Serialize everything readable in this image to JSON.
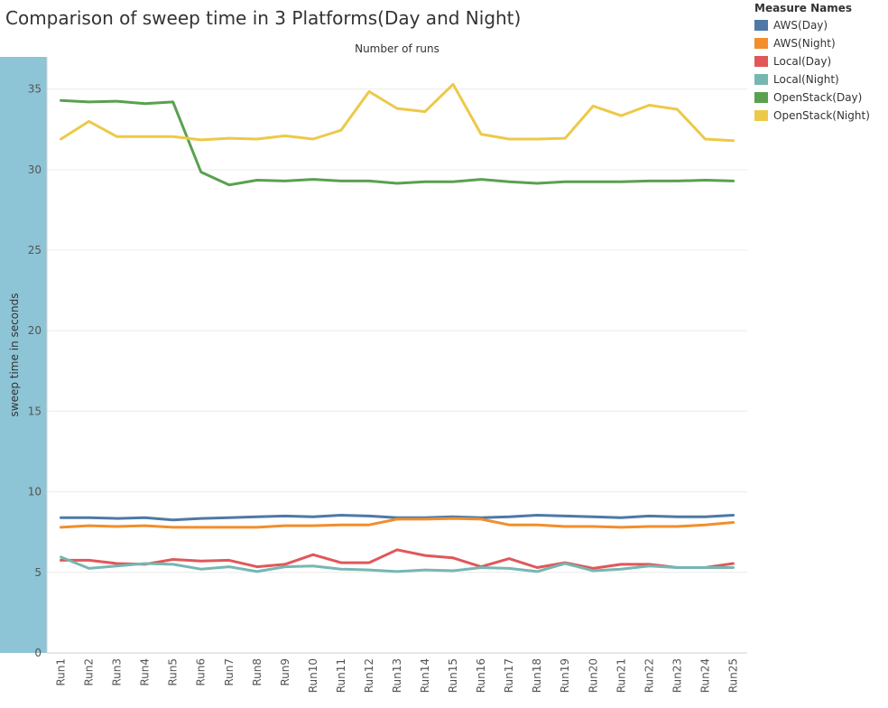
{
  "chart_data": {
    "type": "line",
    "title": "Comparison of sweep time in 3 Platforms(Day and Night)",
    "top_axis_label": "Number of runs",
    "ylabel": "sweep time in seconds",
    "ylim": [
      0,
      37
    ],
    "yticks": [
      0,
      5,
      10,
      15,
      20,
      25,
      30,
      35
    ],
    "categories": [
      "Run1",
      "Run2",
      "Run3",
      "Run4",
      "Run5",
      "Run6",
      "Run7",
      "Run8",
      "Run9",
      "Run10",
      "Run11",
      "Run12",
      "Run13",
      "Run14",
      "Run15",
      "Run16",
      "Run17",
      "Run18",
      "Run19",
      "Run20",
      "Run21",
      "Run22",
      "Run23",
      "Run24",
      "Run25"
    ],
    "legend_title": "Measure Names",
    "legend_position": "top-right",
    "grid": true,
    "series": [
      {
        "name": "AWS(Day)",
        "color": "#4e79a7",
        "values": [
          8.4,
          8.4,
          8.35,
          8.4,
          8.25,
          8.35,
          8.4,
          8.45,
          8.5,
          8.45,
          8.55,
          8.5,
          8.4,
          8.4,
          8.45,
          8.4,
          8.45,
          8.55,
          8.5,
          8.45,
          8.4,
          8.5,
          8.45,
          8.45,
          8.55
        ]
      },
      {
        "name": "AWS(Night)",
        "color": "#f28e2b",
        "values": [
          7.8,
          7.9,
          7.85,
          7.9,
          7.8,
          7.8,
          7.8,
          7.8,
          7.9,
          7.9,
          7.95,
          7.95,
          8.3,
          8.3,
          8.35,
          8.3,
          7.95,
          7.95,
          7.85,
          7.85,
          7.8,
          7.85,
          7.85,
          7.95,
          8.1
        ]
      },
      {
        "name": "Local(Day)",
        "color": "#e15759",
        "values": [
          5.75,
          5.75,
          5.55,
          5.5,
          5.8,
          5.7,
          5.75,
          5.35,
          5.5,
          6.1,
          5.6,
          5.6,
          6.4,
          6.05,
          5.9,
          5.35,
          5.85,
          5.3,
          5.6,
          5.25,
          5.5,
          5.5,
          5.3,
          5.3,
          5.55
        ]
      },
      {
        "name": "Local(Night)",
        "color": "#76b7b2",
        "values": [
          5.95,
          5.25,
          5.4,
          5.55,
          5.5,
          5.2,
          5.35,
          5.05,
          5.35,
          5.4,
          5.2,
          5.15,
          5.05,
          5.15,
          5.1,
          5.3,
          5.25,
          5.05,
          5.55,
          5.1,
          5.2,
          5.4,
          5.3,
          5.3,
          5.3
        ]
      },
      {
        "name": "OpenStack(Day)",
        "color": "#59a14f",
        "values": [
          34.3,
          34.2,
          34.25,
          34.1,
          34.2,
          29.85,
          29.05,
          29.35,
          29.3,
          29.4,
          29.3,
          29.3,
          29.15,
          29.25,
          29.25,
          29.4,
          29.25,
          29.15,
          29.25,
          29.25,
          29.25,
          29.3,
          29.3,
          29.35,
          29.3
        ]
      },
      {
        "name": "OpenStack(Night)",
        "color": "#edc948",
        "values": [
          31.9,
          33.0,
          32.05,
          32.05,
          32.05,
          31.85,
          31.95,
          31.9,
          32.1,
          31.9,
          32.45,
          34.85,
          33.8,
          33.6,
          35.3,
          32.2,
          31.9,
          31.9,
          31.95,
          33.95,
          33.35,
          34.0,
          33.75,
          31.9,
          31.8
        ]
      }
    ]
  }
}
